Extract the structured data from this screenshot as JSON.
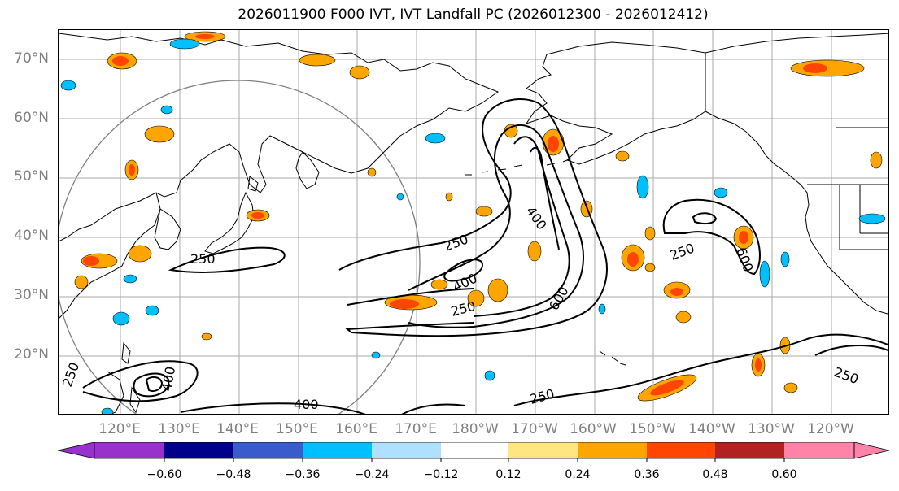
{
  "title": "2026011900 F000 IVT, IVT Landfall PC (2026012300 - 2026012412)",
  "lat_labels": [
    "70°N",
    "60°N",
    "50°N",
    "40°N",
    "30°N",
    "20°N"
  ],
  "lon_labels": [
    "120°E",
    "130°E",
    "140°E",
    "150°E",
    "160°E",
    "170°E",
    "180°W",
    "170°W",
    "160°W",
    "150°W",
    "140°W",
    "130°W",
    "120°W"
  ],
  "contour_labels": [
    "250",
    "250",
    "250",
    "250",
    "250",
    "250",
    "400",
    "400",
    "400",
    "400",
    "600",
    "600",
    "250"
  ],
  "colorbar": {
    "ticks": [
      "−0.60",
      "−0.48",
      "−0.36",
      "−0.24",
      "−0.12",
      "0.12",
      "0.24",
      "0.36",
      "0.48",
      "0.60"
    ],
    "colors": [
      "#9932cc",
      "#00008b",
      "#3a5bcc",
      "#00bfff",
      "#b0e0ff",
      "#ffffff",
      "#ffe680",
      "#ffa500",
      "#ff4500",
      "#b22222",
      "#ff82a8"
    ]
  },
  "colors": {
    "grid": "#aaaaaa",
    "coast": "#000000",
    "contour": "#000000",
    "circle": "#808080",
    "pos_low": "#ffe680",
    "pos_mid": "#ffa500",
    "pos_high": "#ff4500",
    "neg_low": "#b0e0ff",
    "neg_mid": "#00bfff"
  }
}
